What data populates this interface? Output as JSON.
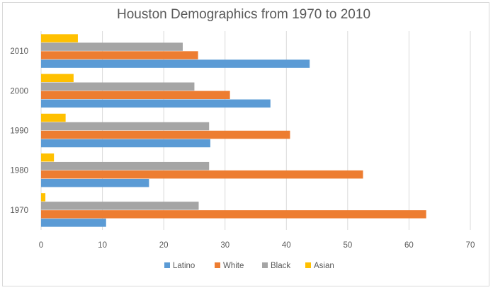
{
  "chart_data": {
    "type": "bar",
    "orientation": "horizontal",
    "title": "Houston Demographics from 1970 to 2010",
    "categories": [
      "1970",
      "1980",
      "1990",
      "2000",
      "2010"
    ],
    "series": [
      {
        "name": "Latino",
        "color": "#5b9bd5",
        "values": [
          10.6,
          17.6,
          27.6,
          37.4,
          43.8
        ]
      },
      {
        "name": "White",
        "color": "#ed7d31",
        "values": [
          62.8,
          52.5,
          40.6,
          30.8,
          25.6
        ]
      },
      {
        "name": "Black",
        "color": "#a5a5a5",
        "values": [
          25.7,
          27.4,
          27.4,
          25.0,
          23.1
        ]
      },
      {
        "name": "Asian",
        "color": "#ffc000",
        "values": [
          0.7,
          2.1,
          4.0,
          5.3,
          6.0
        ]
      }
    ],
    "xlim": [
      0,
      70
    ],
    "xticks": [
      "0",
      "10",
      "20",
      "30",
      "40",
      "50",
      "60",
      "70"
    ],
    "xlabel": "",
    "ylabel": "",
    "grid": true,
    "legend_position": "bottom"
  }
}
